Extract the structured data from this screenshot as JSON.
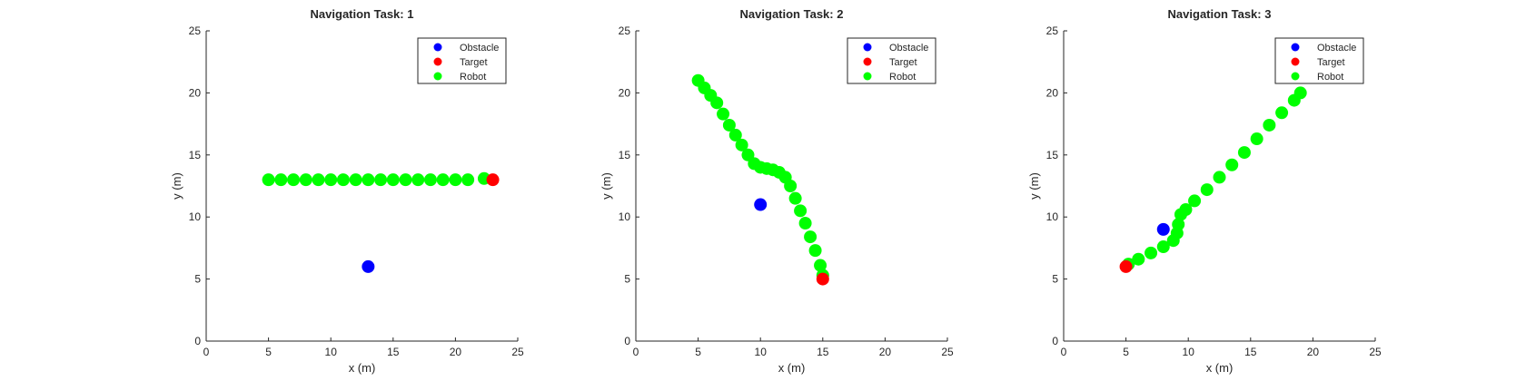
{
  "chart_data": [
    {
      "type": "scatter",
      "title": "Navigation Task: 1",
      "xlabel": "x (m)",
      "ylabel": "y (m)",
      "xlim": [
        0,
        25
      ],
      "ylim": [
        0,
        25
      ],
      "xticks": [
        "0",
        "5",
        "10",
        "15",
        "20",
        "25"
      ],
      "yticks": [
        "0",
        "5",
        "10",
        "15",
        "20",
        "25"
      ],
      "grid": false,
      "legend_position": "top-right",
      "series": [
        {
          "name": "Obstacle",
          "color": "#0000ff",
          "points": [
            [
              13,
              6
            ]
          ]
        },
        {
          "name": "Target",
          "color": "#ff0000",
          "points": [
            [
              23,
              13
            ]
          ]
        },
        {
          "name": "Robot",
          "color": "#00ff00",
          "points": [
            [
              5,
              13
            ],
            [
              6,
              13
            ],
            [
              7,
              13
            ],
            [
              8,
              13
            ],
            [
              9,
              13
            ],
            [
              10,
              13
            ],
            [
              11,
              13
            ],
            [
              12,
              13
            ],
            [
              13,
              13
            ],
            [
              14,
              13
            ],
            [
              15,
              13
            ],
            [
              16,
              13
            ],
            [
              17,
              13
            ],
            [
              18,
              13
            ],
            [
              19,
              13
            ],
            [
              20,
              13
            ],
            [
              21,
              13
            ],
            [
              22.3,
              13.1
            ]
          ]
        }
      ]
    },
    {
      "type": "scatter",
      "title": "Navigation Task: 2",
      "xlabel": "x (m)",
      "ylabel": "y (m)",
      "xlim": [
        0,
        25
      ],
      "ylim": [
        0,
        25
      ],
      "xticks": [
        "0",
        "5",
        "10",
        "15",
        "20",
        "25"
      ],
      "yticks": [
        "0",
        "5",
        "10",
        "15",
        "20",
        "25"
      ],
      "grid": false,
      "legend_position": "top-right",
      "series": [
        {
          "name": "Obstacle",
          "color": "#0000ff",
          "points": [
            [
              10,
              11
            ]
          ]
        },
        {
          "name": "Target",
          "color": "#ff0000",
          "points": [
            [
              15,
              5
            ]
          ]
        },
        {
          "name": "Robot",
          "color": "#00ff00",
          "points": [
            [
              5,
              21
            ],
            [
              5.5,
              20.4
            ],
            [
              6,
              19.8
            ],
            [
              6.5,
              19.2
            ],
            [
              7,
              18.3
            ],
            [
              7.5,
              17.4
            ],
            [
              8,
              16.6
            ],
            [
              8.5,
              15.8
            ],
            [
              9,
              15
            ],
            [
              9.5,
              14.3
            ],
            [
              10,
              14
            ],
            [
              10.5,
              13.9
            ],
            [
              11,
              13.8
            ],
            [
              11.5,
              13.6
            ],
            [
              12,
              13.2
            ],
            [
              12.4,
              12.5
            ],
            [
              12.8,
              11.5
            ],
            [
              13.2,
              10.5
            ],
            [
              13.6,
              9.5
            ],
            [
              14,
              8.4
            ],
            [
              14.4,
              7.3
            ],
            [
              14.8,
              6.1
            ],
            [
              15,
              5.3
            ]
          ]
        }
      ]
    },
    {
      "type": "scatter",
      "title": "Navigation Task: 3",
      "xlabel": "x (m)",
      "ylabel": "y (m)",
      "xlim": [
        0,
        25
      ],
      "ylim": [
        0,
        25
      ],
      "xticks": [
        "0",
        "5",
        "10",
        "15",
        "20",
        "25"
      ],
      "yticks": [
        "0",
        "5",
        "10",
        "15",
        "20",
        "25"
      ],
      "grid": false,
      "legend_position": "top-right",
      "series": [
        {
          "name": "Obstacle",
          "color": "#0000ff",
          "points": [
            [
              8,
              9
            ]
          ]
        },
        {
          "name": "Target",
          "color": "#ff0000",
          "points": [
            [
              5,
              6
            ]
          ]
        },
        {
          "name": "Robot",
          "color": "#00ff00",
          "points": [
            [
              5.2,
              6.2
            ],
            [
              6,
              6.6
            ],
            [
              7,
              7.1
            ],
            [
              8,
              7.6
            ],
            [
              8.8,
              8.1
            ],
            [
              9.1,
              8.7
            ],
            [
              9.2,
              9.4
            ],
            [
              9.4,
              10.2
            ],
            [
              9.8,
              10.6
            ],
            [
              10.5,
              11.3
            ],
            [
              11.5,
              12.2
            ],
            [
              12.5,
              13.2
            ],
            [
              13.5,
              14.2
            ],
            [
              14.5,
              15.2
            ],
            [
              15.5,
              16.3
            ],
            [
              16.5,
              17.4
            ],
            [
              17.5,
              18.4
            ],
            [
              18.5,
              19.4
            ],
            [
              19,
              20
            ]
          ]
        }
      ]
    }
  ]
}
